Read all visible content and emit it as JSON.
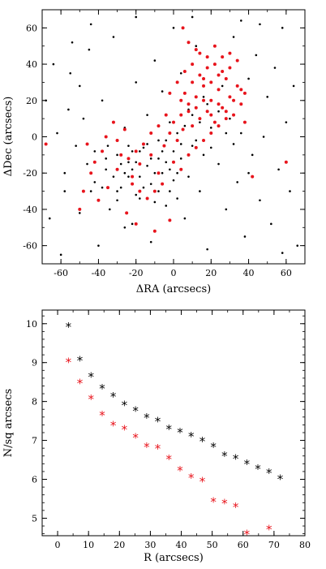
{
  "chart_data": [
    {
      "type": "scatter",
      "title": "",
      "xlabel": "ΔRA (arcsecs)",
      "ylabel": "ΔDec (arcsecs)",
      "xlim": [
        -70,
        70
      ],
      "ylim": [
        -70,
        70
      ],
      "xticks": [
        "-60",
        "-40",
        "-20",
        "0",
        "20",
        "40",
        "60"
      ],
      "yticks": [
        "60",
        "40",
        "20",
        "0",
        "-20",
        "-40",
        "-60"
      ],
      "grid": false,
      "legend": "none",
      "series": [
        {
          "color": "#000000",
          "marker": "dot",
          "distribution": "broad field population filling the box, densest around (-20,-10)",
          "points": [
            [
              -62,
              2
            ],
            [
              -58,
              -20
            ],
            [
              -55,
              35
            ],
            [
              -50,
              -42
            ],
            [
              -48,
              10
            ],
            [
              -45,
              48
            ],
            [
              -42,
              -25
            ],
            [
              -40,
              -60
            ],
            [
              -38,
              20
            ],
            [
              -35,
              -5
            ],
            [
              -32,
              55
            ],
            [
              -30,
              -35
            ],
            [
              -28,
              -15
            ],
            [
              -26,
              5
            ],
            [
              -24,
              -22
            ],
            [
              -22,
              -48
            ],
            [
              -20,
              30
            ],
            [
              -18,
              -8
            ],
            [
              -16,
              -28
            ],
            [
              -14,
              12
            ],
            [
              -12,
              -58
            ],
            [
              -10,
              42
            ],
            [
              -8,
              -12
            ],
            [
              -6,
              25
            ],
            [
              -4,
              -38
            ],
            [
              -2,
              8
            ],
            [
              0,
              60
            ],
            [
              2,
              -20
            ],
            [
              4,
              35
            ],
            [
              6,
              -45
            ],
            [
              8,
              15
            ],
            [
              10,
              -5
            ],
            [
              12,
              50
            ],
            [
              14,
              -30
            ],
            [
              16,
              22
            ],
            [
              18,
              -62
            ],
            [
              20,
              5
            ],
            [
              22,
              40
            ],
            [
              24,
              -15
            ],
            [
              26,
              28
            ],
            [
              28,
              -40
            ],
            [
              30,
              10
            ],
            [
              32,
              55
            ],
            [
              34,
              -25
            ],
            [
              36,
              18
            ],
            [
              38,
              -55
            ],
            [
              40,
              32
            ],
            [
              42,
              -10
            ],
            [
              44,
              45
            ],
            [
              46,
              -35
            ],
            [
              48,
              0
            ],
            [
              50,
              22
            ],
            [
              52,
              -48
            ],
            [
              54,
              38
            ],
            [
              56,
              -18
            ],
            [
              58,
              60
            ],
            [
              60,
              8
            ],
            [
              62,
              -30
            ],
            [
              64,
              28
            ],
            [
              66,
              -60
            ],
            [
              -66,
              -45
            ],
            [
              -64,
              40
            ],
            [
              -60,
              -65
            ],
            [
              -56,
              15
            ],
            [
              -52,
              -5
            ],
            [
              -46,
              -15
            ],
            [
              -44,
              -30
            ],
            [
              -36,
              -18
            ],
            [
              -34,
              -40
            ],
            [
              -30,
              -10
            ],
            [
              -28,
              -28
            ],
            [
              -26,
              -50
            ],
            [
              -24,
              -5
            ],
            [
              -22,
              -18
            ],
            [
              -20,
              -32
            ],
            [
              -18,
              -22
            ],
            [
              -16,
              -6
            ],
            [
              -14,
              -16
            ],
            [
              -12,
              -26
            ],
            [
              -10,
              -36
            ],
            [
              -8,
              -2
            ],
            [
              -6,
              -20
            ],
            [
              -4,
              -14
            ],
            [
              -2,
              -30
            ],
            [
              0,
              -8
            ],
            [
              2,
              2
            ],
            [
              4,
              -12
            ],
            [
              6,
              6
            ],
            [
              8,
              -22
            ],
            [
              10,
              12
            ],
            [
              12,
              -2
            ],
            [
              14,
              8
            ],
            [
              16,
              -10
            ],
            [
              18,
              18
            ],
            [
              20,
              -6
            ],
            [
              24,
              14
            ],
            [
              28,
              2
            ],
            [
              32,
              -4
            ],
            [
              36,
              2
            ],
            [
              40,
              -20
            ],
            [
              -42,
              -8
            ],
            [
              -38,
              -28
            ],
            [
              -36,
              -12
            ],
            [
              -32,
              -22
            ],
            [
              -30,
              -30
            ],
            [
              -26,
              -20
            ],
            [
              -24,
              -14
            ],
            [
              -22,
              -8
            ],
            [
              -20,
              -14
            ],
            [
              -18,
              -34
            ],
            [
              -14,
              -4
            ],
            [
              -12,
              -12
            ],
            [
              -10,
              -20
            ],
            [
              -8,
              -30
            ],
            [
              -6,
              -8
            ],
            [
              -4,
              -2
            ],
            [
              -2,
              -18
            ],
            [
              0,
              -24
            ],
            [
              2,
              -34
            ],
            [
              4,
              -4
            ],
            [
              -50,
              28
            ],
            [
              -44,
              62
            ],
            [
              -20,
              66
            ],
            [
              10,
              66
            ],
            [
              36,
              64
            ],
            [
              46,
              62
            ],
            [
              -58,
              -30
            ],
            [
              -54,
              52
            ],
            [
              58,
              -64
            ],
            [
              -68,
              20
            ]
          ]
        },
        {
          "color": "#e8141c",
          "marker": "dot",
          "distribution": "concentrated band from (-40,-25) to (35,25), densest around (15,15)",
          "points": [
            [
              5,
              60
            ],
            [
              -40,
              -35
            ],
            [
              -50,
              -40
            ],
            [
              -25,
              -42
            ],
            [
              -20,
              -48
            ],
            [
              -10,
              -52
            ],
            [
              -2,
              -46
            ],
            [
              42,
              -22
            ],
            [
              60,
              -14
            ],
            [
              -68,
              -4
            ],
            [
              -48,
              -30
            ],
            [
              -35,
              -28
            ],
            [
              -30,
              -18
            ],
            [
              -28,
              -10
            ],
            [
              -22,
              -22
            ],
            [
              -18,
              -15
            ],
            [
              -12,
              -10
            ],
            [
              -8,
              -20
            ],
            [
              -5,
              -5
            ],
            [
              -2,
              2
            ],
            [
              0,
              8
            ],
            [
              2,
              -2
            ],
            [
              4,
              12
            ],
            [
              5,
              4
            ],
            [
              8,
              18
            ],
            [
              10,
              6
            ],
            [
              12,
              22
            ],
            [
              14,
              10
            ],
            [
              16,
              28
            ],
            [
              18,
              14
            ],
            [
              20,
              20
            ],
            [
              22,
              8
            ],
            [
              24,
              26
            ],
            [
              26,
              16
            ],
            [
              28,
              32
            ],
            [
              30,
              22
            ],
            [
              32,
              12
            ],
            [
              34,
              28
            ],
            [
              36,
              18
            ],
            [
              38,
              24
            ],
            [
              6,
              24
            ],
            [
              10,
              30
            ],
            [
              14,
              34
            ],
            [
              18,
              38
            ],
            [
              22,
              40
            ],
            [
              26,
              36
            ],
            [
              30,
              38
            ],
            [
              34,
              42
            ],
            [
              4,
              20
            ],
            [
              8,
              14
            ],
            [
              12,
              16
            ],
            [
              16,
              20
            ],
            [
              20,
              12
            ],
            [
              24,
              18
            ],
            [
              28,
              10
            ],
            [
              -4,
              12
            ],
            [
              -8,
              6
            ],
            [
              -12,
              2
            ],
            [
              -16,
              -4
            ],
            [
              -20,
              -8
            ],
            [
              -24,
              -12
            ],
            [
              -26,
              4
            ],
            [
              -30,
              -2
            ],
            [
              -32,
              8
            ],
            [
              -36,
              0
            ],
            [
              -38,
              -8
            ],
            [
              -42,
              -14
            ],
            [
              -44,
              -20
            ],
            [
              -46,
              -4
            ],
            [
              -6,
              -26
            ],
            [
              -10,
              -30
            ],
            [
              -14,
              -34
            ],
            [
              -18,
              -30
            ],
            [
              -22,
              -26
            ],
            [
              0,
              -14
            ],
            [
              4,
              -18
            ],
            [
              8,
              -10
            ],
            [
              12,
              -6
            ],
            [
              16,
              -2
            ],
            [
              20,
              2
            ],
            [
              24,
              6
            ],
            [
              28,
              14
            ],
            [
              32,
              20
            ],
            [
              36,
              26
            ],
            [
              38,
              8
            ],
            [
              -2,
              24
            ],
            [
              2,
              30
            ],
            [
              6,
              36
            ],
            [
              10,
              40
            ],
            [
              14,
              46
            ],
            [
              18,
              44
            ],
            [
              22,
              50
            ],
            [
              26,
              44
            ],
            [
              30,
              46
            ],
            [
              8,
              52
            ],
            [
              12,
              48
            ],
            [
              16,
              32
            ],
            [
              20,
              30
            ],
            [
              24,
              34
            ]
          ]
        }
      ]
    },
    {
      "type": "scatter",
      "title": "",
      "xlabel": "R (arcsecs)",
      "ylabel": "N/sq arcsecs",
      "xlim": [
        -5,
        80
      ],
      "ylim": [
        4.55,
        10.35
      ],
      "xticks": [
        "0",
        "10",
        "20",
        "30",
        "40",
        "50",
        "60",
        "70",
        "80"
      ],
      "yticks": [
        "5",
        "6",
        "7",
        "8",
        "9",
        "10"
      ],
      "grid": false,
      "legend": "none",
      "series": [
        {
          "color": "#000000",
          "marker": "asterisk",
          "points": [
            [
              3.5,
              9.93
            ],
            [
              7.2,
              9.07
            ],
            [
              10.8,
              8.65
            ],
            [
              14.4,
              8.35
            ],
            [
              18.0,
              8.14
            ],
            [
              21.6,
              7.92
            ],
            [
              25.2,
              7.77
            ],
            [
              28.8,
              7.6
            ],
            [
              32.4,
              7.5
            ],
            [
              36.0,
              7.3
            ],
            [
              39.6,
              7.22
            ],
            [
              43.2,
              7.12
            ],
            [
              46.8,
              6.99
            ],
            [
              50.4,
              6.84
            ],
            [
              54.0,
              6.62
            ],
            [
              57.6,
              6.54
            ],
            [
              61.2,
              6.41
            ],
            [
              64.8,
              6.28
            ],
            [
              68.4,
              6.18
            ],
            [
              72.0,
              6.02
            ]
          ]
        },
        {
          "color": "#e8141c",
          "marker": "asterisk",
          "points": [
            [
              3.5,
              9.02
            ],
            [
              7.2,
              8.48
            ],
            [
              10.8,
              8.08
            ],
            [
              14.4,
              7.66
            ],
            [
              18.0,
              7.4
            ],
            [
              21.6,
              7.29
            ],
            [
              25.2,
              7.09
            ],
            [
              28.8,
              6.84
            ],
            [
              32.4,
              6.8
            ],
            [
              36.0,
              6.53
            ],
            [
              39.6,
              6.24
            ],
            [
              43.2,
              6.05
            ],
            [
              46.8,
              5.96
            ],
            [
              50.4,
              5.44
            ],
            [
              54.0,
              5.4
            ],
            [
              57.6,
              5.3
            ],
            [
              61.2,
              4.6
            ],
            [
              68.4,
              4.73
            ]
          ]
        }
      ]
    }
  ]
}
